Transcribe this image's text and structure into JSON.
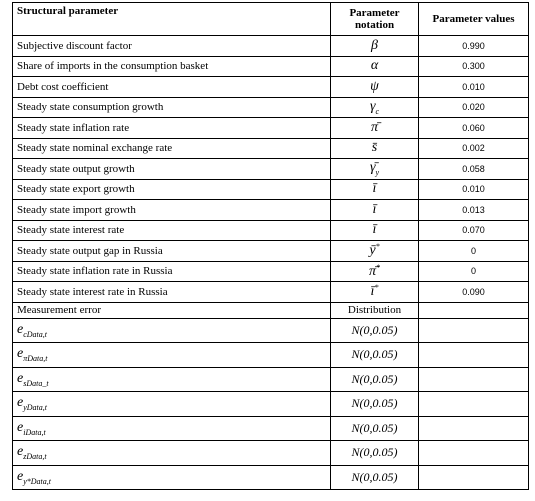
{
  "table": {
    "header": [
      "Structural parameter",
      "Parameter notation",
      "Parameter values"
    ],
    "rows": [
      {
        "label": "Subjective discount factor",
        "notation": {
          "symbol": "β"
        },
        "value": "0.990"
      },
      {
        "label": "Share of imports in the consumption basket",
        "notation": {
          "symbol": "α"
        },
        "value": "0.300"
      },
      {
        "label": "Debt cost coefficient",
        "notation": {
          "symbol": "ψ"
        },
        "value": "0.010"
      },
      {
        "label": "Steady state consumption growth",
        "notation": {
          "symbol": "γ",
          "sub": "c"
        },
        "value": "0.020"
      },
      {
        "label": "Steady state inflation rate",
        "notation": {
          "symbol": "π̄"
        },
        "value": "0.060"
      },
      {
        "label": "Steady state nominal exchange rate",
        "notation": {
          "symbol": "s̄"
        },
        "value": "0.002"
      },
      {
        "label": "Steady state output growth",
        "notation": {
          "symbol": "γ̄",
          "sub": "y"
        },
        "value": "0.058"
      },
      {
        "label": "Steady state export growth",
        "notation": {
          "symbol": "ī"
        },
        "value": "0.010"
      },
      {
        "label": "Steady state import growth",
        "notation": {
          "symbol": "ī"
        },
        "value": "0.013"
      },
      {
        "label": "Steady state interest rate",
        "notation": {
          "symbol": "ī"
        },
        "value": "0.070"
      },
      {
        "label": "Steady state output gap in Russia",
        "notation": {
          "symbol": "ȳ",
          "sup": "*"
        },
        "value": "0"
      },
      {
        "label": "Steady state inflation rate in Russia",
        "notation": {
          "symbol": "π̄",
          "sup": "*"
        },
        "value": "0"
      },
      {
        "label": "Steady state interest rate in Russia",
        "notation": {
          "symbol": "ī",
          "sup": "*"
        },
        "value": "0.090"
      }
    ],
    "measurement_header": [
      "Measurement error",
      "Distribution"
    ],
    "measurement_rows": [
      {
        "label": {
          "symbol": "e",
          "sub": "cData,t"
        },
        "distribution": "N(0,0.05)"
      },
      {
        "label": {
          "symbol": "e",
          "sub": "πData,t"
        },
        "distribution": "N(0,0.05)"
      },
      {
        "label": {
          "symbol": "e",
          "sub": "sData_t"
        },
        "distribution": "N(0,0.05)"
      },
      {
        "label": {
          "symbol": "e",
          "sub": "yData,t"
        },
        "distribution": "N(0,0.05)"
      },
      {
        "label": {
          "symbol": "e",
          "sub": "iData,t"
        },
        "distribution": "N(0,0.05)"
      },
      {
        "label": {
          "symbol": "e",
          "sub": "zData,t"
        },
        "distribution": "N(0,0.05)"
      },
      {
        "label": {
          "symbol": "e",
          "sub": "y*Data,t"
        },
        "distribution": "N(0,0.05)"
      }
    ]
  }
}
